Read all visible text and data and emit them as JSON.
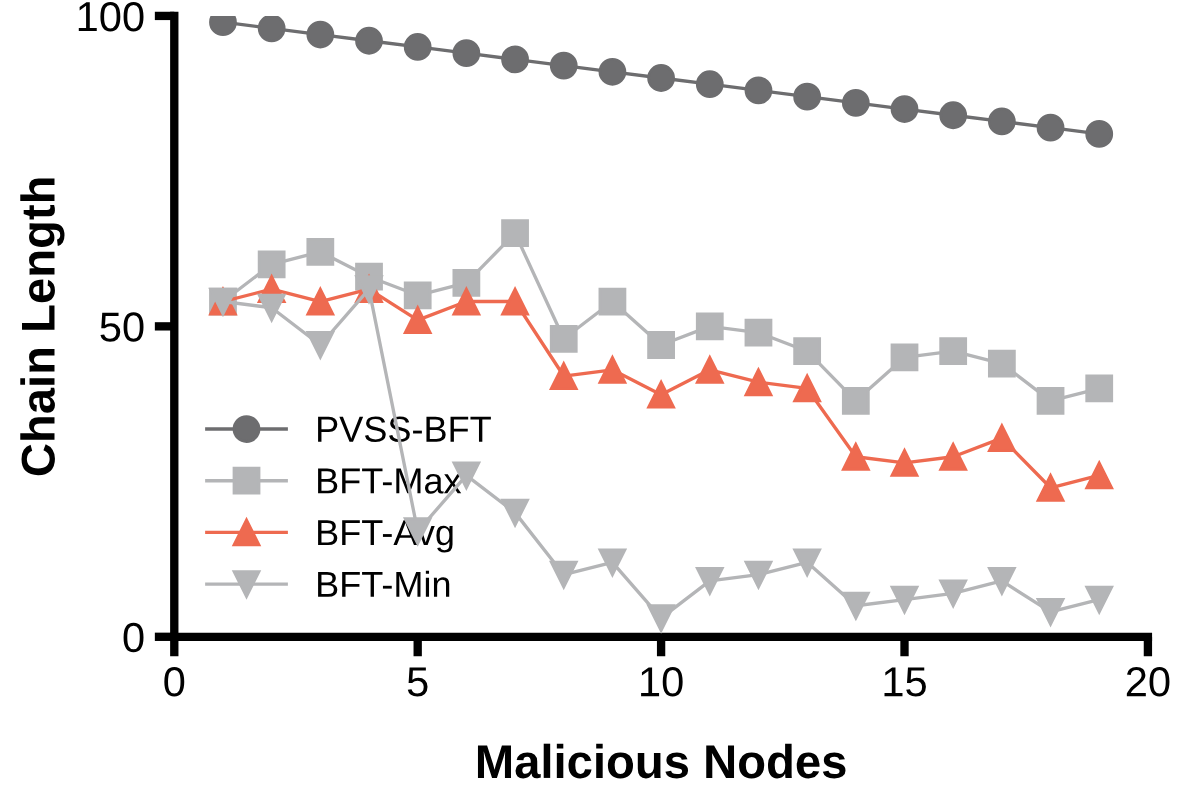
{
  "chart_data": {
    "type": "line",
    "xlabel": "Malicious Nodes",
    "ylabel": "Chain Length",
    "x": [
      1,
      2,
      3,
      4,
      5,
      6,
      7,
      8,
      9,
      10,
      11,
      12,
      13,
      14,
      15,
      16,
      17,
      18,
      19
    ],
    "series": [
      {
        "name": "PVSS-BFT",
        "color": "#6d6d6f",
        "marker": "circle",
        "values": [
          99,
          98,
          97,
          96,
          95,
          94,
          93,
          92,
          91,
          90,
          89,
          88,
          87,
          86,
          85,
          84,
          83,
          82,
          81
        ]
      },
      {
        "name": "BFT-Max",
        "color": "#b4b5b7",
        "marker": "square",
        "values": [
          54,
          60,
          62,
          58,
          55,
          57,
          65,
          48,
          54,
          47,
          50,
          49,
          46,
          38,
          45,
          46,
          44,
          38,
          40
        ]
      },
      {
        "name": "BFT-Avg",
        "color": "#ee6a50",
        "marker": "triangle",
        "values": [
          54,
          56,
          54,
          56,
          51,
          54,
          54,
          42,
          43,
          39,
          43,
          41,
          40,
          29,
          28,
          29,
          32,
          24,
          26
        ]
      },
      {
        "name": "BFT-Min",
        "color": "#b4b5b7",
        "marker": "triangle_down",
        "values": [
          54,
          53,
          47,
          56,
          17,
          26,
          20,
          10,
          12,
          3,
          9,
          10,
          12,
          5,
          6,
          7,
          9,
          4,
          6
        ]
      }
    ],
    "xlim": [
      0,
      20
    ],
    "xticks": [
      0,
      5,
      10,
      15,
      20
    ],
    "ylim": [
      0,
      100
    ],
    "yticks": [
      0,
      50,
      100
    ],
    "grid": false,
    "legend": "lower left",
    "line_style": "solid"
  }
}
